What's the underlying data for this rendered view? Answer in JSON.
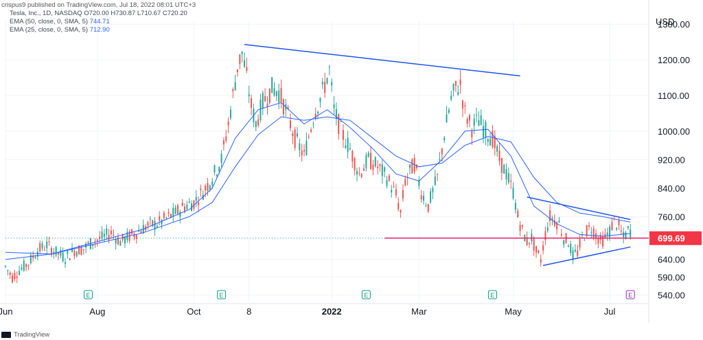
{
  "header": {
    "publisher_line": "crispus9 published on TradingView.com, Jul 18, 2022 08:01 UTC+3",
    "symbol_line": "Tesla, Inc., 1D, NASDAQ",
    "ohlc": {
      "o": "O720.00",
      "h": "H730.87",
      "l": "L710.67",
      "c": "C720.20"
    },
    "ema50_label": "EMA (50, close, 0, SMA, 5)",
    "ema50_value": "744.71",
    "ema25_label": "EMA (25, close, 0, SMA, 5)",
    "ema25_value": "712.90"
  },
  "axis": {
    "currency": "USD"
  },
  "footer": {
    "brand": "TradingView"
  },
  "colors": {
    "up": "#26a69a",
    "down": "#ef5350",
    "ema": "#2962ff",
    "trendline": "#1e53e5",
    "support": "#e91e63",
    "price_tag": "#f23645",
    "grid": "#f0f3fa"
  },
  "chart_data": {
    "type": "candlestick",
    "title": "Tesla, Inc., 1D, NASDAQ",
    "ylim": [
      520,
      1310
    ],
    "y_ticks": [
      540,
      590,
      640,
      700,
      760,
      840,
      920,
      1000,
      1100,
      1200,
      1300
    ],
    "y_tick_labels": [
      "540.00",
      "590.00",
      "640.00",
      "700.00",
      "760.00",
      "840.00",
      "920.00",
      "1000.00",
      "1100.00",
      "1200.00",
      "1300.00"
    ],
    "x_labels": [
      {
        "label": "Jun",
        "x": 0
      },
      {
        "label": "Aug",
        "x": 40
      },
      {
        "label": "Oct",
        "x": 82
      },
      {
        "label": "8",
        "x": 106
      },
      {
        "label": "2022",
        "x": 142
      },
      {
        "label": "Mar",
        "x": 180
      },
      {
        "label": "May",
        "x": 221
      },
      {
        "label": "Jul",
        "x": 263
      }
    ],
    "x_range": [
      0,
      280
    ],
    "last_price": "699.69",
    "last_price_value": 699.69,
    "earnings_markers": [
      {
        "x": 36,
        "label": "E"
      },
      {
        "x": 94,
        "label": "E"
      },
      {
        "x": 157,
        "label": "E"
      },
      {
        "x": 212,
        "label": "E"
      },
      {
        "x": 272,
        "label": "E"
      }
    ],
    "trendlines": [
      {
        "name": "resistance",
        "points": [
          [
            104,
            1243
          ],
          [
            224,
            1155
          ]
        ]
      },
      {
        "name": "support",
        "points": [
          [
            165,
            700
          ],
          [
            280,
            700
          ]
        ]
      },
      {
        "name": "triangle-upper",
        "points": [
          [
            227,
            815
          ],
          [
            272,
            752
          ]
        ]
      },
      {
        "name": "triangle-lower",
        "points": [
          [
            234,
            623
          ],
          [
            272,
            675
          ]
        ]
      }
    ],
    "price_points": [
      [
        0,
        620
      ],
      [
        3,
        590
      ],
      [
        6,
        610
      ],
      [
        10,
        630
      ],
      [
        14,
        665
      ],
      [
        18,
        680
      ],
      [
        22,
        660
      ],
      [
        26,
        645
      ],
      [
        30,
        665
      ],
      [
        34,
        670
      ],
      [
        38,
        690
      ],
      [
        42,
        700
      ],
      [
        46,
        715
      ],
      [
        50,
        690
      ],
      [
        54,
        705
      ],
      [
        58,
        720
      ],
      [
        62,
        735
      ],
      [
        66,
        740
      ],
      [
        70,
        755
      ],
      [
        74,
        770
      ],
      [
        78,
        790
      ],
      [
        82,
        800
      ],
      [
        86,
        830
      ],
      [
        90,
        870
      ],
      [
        94,
        920
      ],
      [
        97,
        1020
      ],
      [
        99,
        1100
      ],
      [
        101,
        1180
      ],
      [
        103,
        1220
      ],
      [
        105,
        1150
      ],
      [
        107,
        1070
      ],
      [
        109,
        1020
      ],
      [
        112,
        1080
      ],
      [
        116,
        1120
      ],
      [
        119,
        1110
      ],
      [
        122,
        1060
      ],
      [
        126,
        980
      ],
      [
        130,
        930
      ],
      [
        134,
        1040
      ],
      [
        138,
        1110
      ],
      [
        141,
        1170
      ],
      [
        143,
        1060
      ],
      [
        146,
        1000
      ],
      [
        150,
        950
      ],
      [
        154,
        880
      ],
      [
        158,
        920
      ],
      [
        162,
        900
      ],
      [
        166,
        870
      ],
      [
        170,
        820
      ],
      [
        172,
        770
      ],
      [
        174,
        860
      ],
      [
        178,
        910
      ],
      [
        181,
        830
      ],
      [
        184,
        790
      ],
      [
        188,
        870
      ],
      [
        191,
        990
      ],
      [
        194,
        1090
      ],
      [
        196,
        1120
      ],
      [
        198,
        1130
      ],
      [
        200,
        1050
      ],
      [
        203,
        1010
      ],
      [
        206,
        1030
      ],
      [
        209,
        1000
      ],
      [
        212,
        980
      ],
      [
        215,
        920
      ],
      [
        218,
        880
      ],
      [
        221,
        830
      ],
      [
        223,
        760
      ],
      [
        225,
        720
      ],
      [
        227,
        690
      ],
      [
        229,
        700
      ],
      [
        231,
        660
      ],
      [
        233,
        640
      ],
      [
        235,
        710
      ],
      [
        237,
        760
      ],
      [
        239,
        750
      ],
      [
        241,
        740
      ],
      [
        243,
        700
      ],
      [
        245,
        690
      ],
      [
        247,
        650
      ],
      [
        249,
        660
      ],
      [
        251,
        700
      ],
      [
        253,
        720
      ],
      [
        255,
        730
      ],
      [
        257,
        710
      ],
      [
        259,
        690
      ],
      [
        261,
        700
      ],
      [
        263,
        720
      ],
      [
        265,
        750
      ],
      [
        267,
        730
      ],
      [
        269,
        700
      ],
      [
        271,
        720
      ],
      [
        272,
        720
      ]
    ],
    "series": [
      {
        "name": "EMA (25, close, 0, SMA, 5)",
        "values": [
          [
            0,
            640
          ],
          [
            20,
            655
          ],
          [
            40,
            690
          ],
          [
            60,
            725
          ],
          [
            80,
            780
          ],
          [
            90,
            840
          ],
          [
            100,
            980
          ],
          [
            110,
            1060
          ],
          [
            120,
            1080
          ],
          [
            130,
            1020
          ],
          [
            140,
            1060
          ],
          [
            150,
            1010
          ],
          [
            160,
            950
          ],
          [
            170,
            880
          ],
          [
            180,
            860
          ],
          [
            190,
            920
          ],
          [
            200,
            1000
          ],
          [
            210,
            1005
          ],
          [
            220,
            930
          ],
          [
            230,
            790
          ],
          [
            240,
            740
          ],
          [
            250,
            710
          ],
          [
            260,
            705
          ],
          [
            272,
            712.9
          ]
        ]
      },
      {
        "name": "EMA (50, close, 0, SMA, 5)",
        "values": [
          [
            0,
            660
          ],
          [
            20,
            655
          ],
          [
            40,
            685
          ],
          [
            60,
            715
          ],
          [
            80,
            760
          ],
          [
            90,
            800
          ],
          [
            100,
            900
          ],
          [
            110,
            990
          ],
          [
            120,
            1040
          ],
          [
            130,
            1030
          ],
          [
            140,
            1040
          ],
          [
            150,
            1030
          ],
          [
            160,
            980
          ],
          [
            170,
            930
          ],
          [
            180,
            900
          ],
          [
            190,
            910
          ],
          [
            200,
            960
          ],
          [
            210,
            985
          ],
          [
            220,
            970
          ],
          [
            230,
            870
          ],
          [
            240,
            800
          ],
          [
            250,
            770
          ],
          [
            260,
            760
          ],
          [
            272,
            744.71
          ]
        ]
      }
    ]
  }
}
